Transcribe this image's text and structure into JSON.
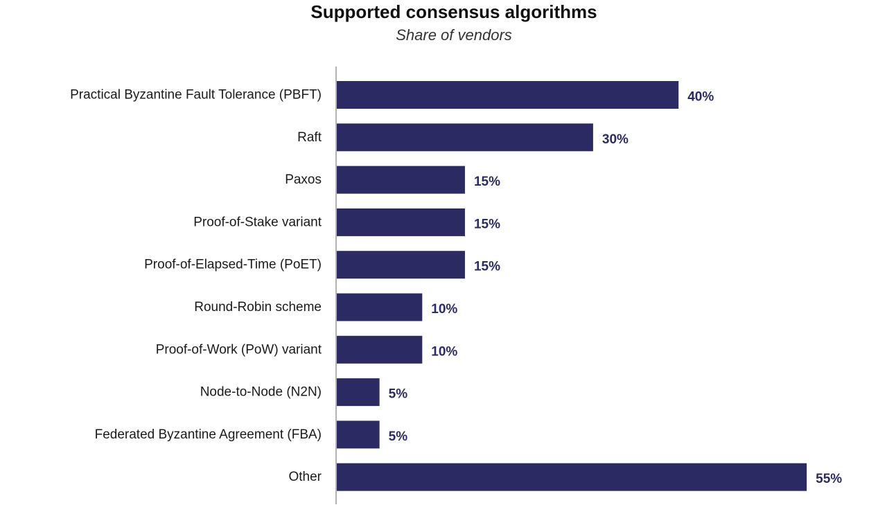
{
  "chart_data": {
    "type": "bar",
    "orientation": "horizontal",
    "title": "Supported consensus algorithms",
    "subtitle": "Share of vendors",
    "categories": [
      "Practical Byzantine Fault Tolerance (PBFT)",
      "Raft",
      "Paxos",
      "Proof-of-Stake variant",
      "Proof-of-Elapsed-Time (PoET)",
      "Round-Robin scheme",
      "Proof-of-Work (PoW) variant",
      "Node-to-Node (N2N)",
      "Federated Byzantine Agreement (FBA)",
      "Other"
    ],
    "values": [
      40,
      30,
      15,
      15,
      15,
      10,
      10,
      5,
      5,
      55
    ],
    "value_labels": [
      "40%",
      "30%",
      "15%",
      "15%",
      "15%",
      "10%",
      "10%",
      "5%",
      "5%",
      "55%"
    ],
    "unit": "%",
    "xlim": [
      0,
      55
    ],
    "grid": false,
    "legend": "none",
    "colors": {
      "bar": "#2c2a63",
      "value_label": "#2c2a63",
      "axis": "#9a9a9a"
    }
  }
}
